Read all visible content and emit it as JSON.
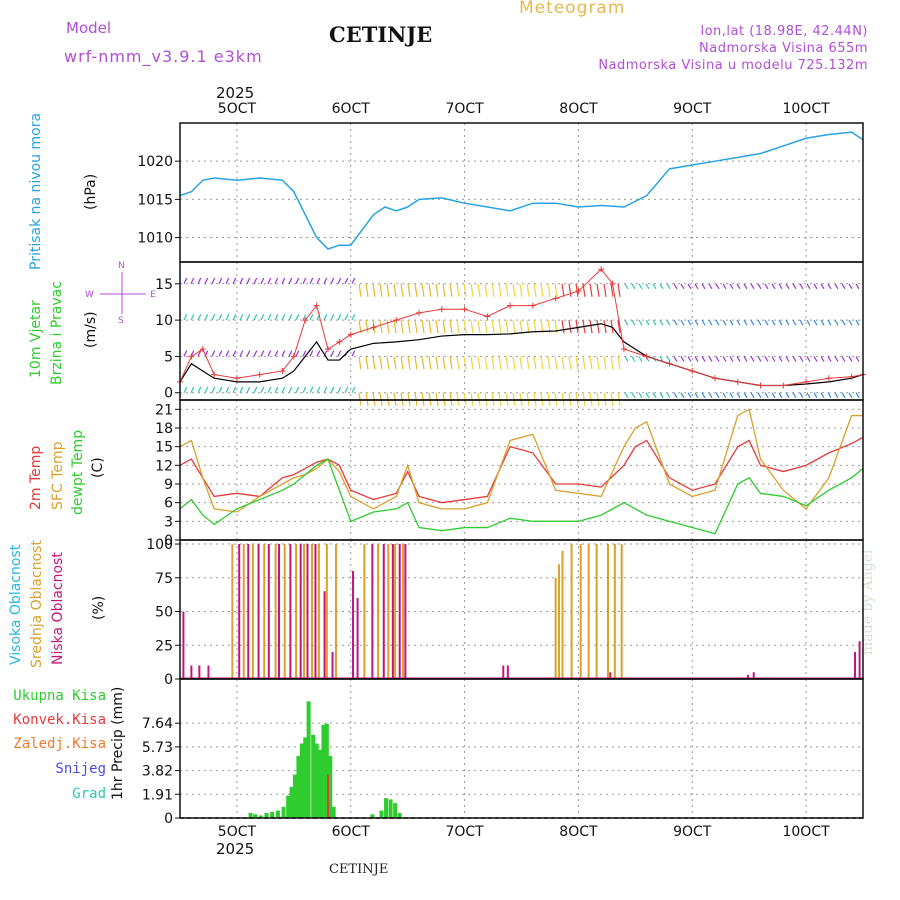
{
  "header": {
    "model_label": "Model",
    "model_name": "wrf-nmm_v3.9.1 e3km",
    "station": "CETINJE",
    "product": "Meteogram",
    "lonlat": "lon,lat (18.98E, 42.44N)",
    "elevation": "Nadmorska Visina 655m",
    "model_elevation": "Nadmorska Visina u modelu 725.132m",
    "year_top": "2025",
    "year_bottom": "2025",
    "footer_station": "CETINJE",
    "watermark": "made by Angel"
  },
  "colors": {
    "pressure": "#27a3e3",
    "wind_speed": "#000000",
    "gust": "#e8383a",
    "temp": "#e8383a",
    "sfc_temp": "#d9a02a",
    "dewpt": "#2ecc2e",
    "high_cloud": "#27b7e3",
    "mid_cloud": "#d9a02a",
    "low_cloud": "#c0157a",
    "precip": "#2ecc2e",
    "conv": "#e8383a",
    "header_purple": "#b04fd6",
    "meteogram": "#e8b74f"
  },
  "chart_data": [
    {
      "type": "line",
      "title": "Pritisak na nivou mora",
      "ylabel": "(hPa)",
      "date_ticks": [
        "5OCT",
        "6OCT",
        "7OCT",
        "8OCT",
        "9OCT",
        "10OCT"
      ],
      "date_tick_positions": [
        5,
        6,
        7,
        8,
        9,
        10
      ],
      "xlim": [
        4.5,
        10.5
      ],
      "ylim": [
        1006.8,
        1025
      ],
      "yticks": [
        "1010",
        "1015",
        "1020"
      ],
      "ytick_values": [
        1010,
        1015,
        1020
      ],
      "series": [
        {
          "name": "Pritisak",
          "x": [
            4.5,
            4.6,
            4.7,
            4.8,
            5.0,
            5.2,
            5.4,
            5.5,
            5.6,
            5.7,
            5.8,
            5.9,
            6.0,
            6.1,
            6.2,
            6.3,
            6.4,
            6.5,
            6.6,
            6.8,
            7.0,
            7.2,
            7.4,
            7.6,
            7.8,
            8.0,
            8.2,
            8.4,
            8.6,
            8.8,
            9.0,
            9.2,
            9.4,
            9.6,
            9.8,
            10.0,
            10.2,
            10.4,
            10.5
          ],
          "values": [
            1015.5,
            1016,
            1017.5,
            1017.8,
            1017.5,
            1017.8,
            1017.5,
            1016,
            1013,
            1010,
            1008.5,
            1009,
            1009,
            1011,
            1013,
            1014,
            1013.5,
            1014,
            1015,
            1015.2,
            1014.5,
            1014,
            1013.5,
            1014.5,
            1014.5,
            1014,
            1014.2,
            1014,
            1015.5,
            1019,
            1019.5,
            1020,
            1020.5,
            1021,
            1022,
            1023,
            1023.5,
            1023.8,
            1022.8
          ]
        }
      ]
    },
    {
      "type": "line",
      "title": "10m Vjetar Brzina i Pravac",
      "ylabel": "(m/s)",
      "xlim": [
        4.5,
        10.5
      ],
      "ylim": [
        -1,
        18
      ],
      "yticks": [
        "0",
        "5",
        "10",
        "15"
      ],
      "ytick_values": [
        0,
        5,
        10,
        15
      ],
      "compass": {
        "n": "N",
        "s": "S",
        "e": "E",
        "w": "W"
      },
      "barb_rows": [
        15,
        10,
        5,
        0
      ],
      "series": [
        {
          "name": "Brzina",
          "x": [
            4.5,
            4.6,
            4.7,
            4.8,
            5.0,
            5.2,
            5.4,
            5.5,
            5.6,
            5.7,
            5.8,
            5.9,
            6.0,
            6.2,
            6.4,
            6.6,
            6.8,
            7.0,
            7.2,
            7.4,
            7.6,
            7.8,
            8.0,
            8.2,
            8.3,
            8.4,
            8.6,
            8.8,
            9.0,
            9.2,
            9.4,
            9.6,
            9.8,
            10.0,
            10.2,
            10.4,
            10.5
          ],
          "values": [
            1.5,
            4,
            3,
            2,
            1.5,
            1.5,
            2,
            3,
            5,
            7,
            4.5,
            4.5,
            6,
            6.8,
            7,
            7.3,
            7.8,
            8,
            8,
            8.1,
            8.4,
            8.5,
            9,
            9.5,
            9,
            7,
            5,
            4,
            3,
            2,
            1.5,
            1,
            1,
            1.2,
            1.5,
            2,
            2.5
          ]
        },
        {
          "name": "Udari",
          "x": [
            4.5,
            4.6,
            4.7,
            4.8,
            5.0,
            5.2,
            5.4,
            5.5,
            5.6,
            5.7,
            5.8,
            5.9,
            6.0,
            6.2,
            6.4,
            6.6,
            6.8,
            7.0,
            7.2,
            7.4,
            7.6,
            7.8,
            8.0,
            8.2,
            8.3,
            8.4,
            8.6,
            8.8,
            9.0,
            9.2,
            9.4,
            9.6,
            9.8,
            10.0,
            10.2,
            10.4,
            10.5
          ],
          "values": [
            1.5,
            5,
            6,
            2.5,
            2,
            2.5,
            3,
            5,
            10,
            12,
            6,
            7,
            8,
            9,
            10,
            11,
            11.5,
            11.5,
            10.5,
            12,
            12,
            13,
            14,
            17,
            15,
            6,
            5,
            4,
            3,
            2,
            1.5,
            1,
            1,
            1.5,
            2,
            2.2,
            2.5
          ]
        }
      ]
    },
    {
      "type": "line",
      "title": "2m Temp / SFC Temp / dewpt Temp",
      "ylabel": "(C)",
      "xlim": [
        4.5,
        10.5
      ],
      "ylim": [
        0,
        22.5
      ],
      "yticks": [
        "0",
        "3",
        "6",
        "9",
        "12",
        "15",
        "18",
        "21"
      ],
      "ytick_values": [
        0,
        3,
        6,
        9,
        12,
        15,
        18,
        21
      ],
      "series": [
        {
          "name": "2m Temp",
          "x": [
            4.5,
            4.6,
            4.7,
            4.8,
            5.0,
            5.2,
            5.4,
            5.5,
            5.6,
            5.7,
            5.8,
            5.9,
            6.0,
            6.2,
            6.4,
            6.5,
            6.6,
            6.8,
            7.0,
            7.2,
            7.4,
            7.6,
            7.8,
            8.0,
            8.2,
            8.4,
            8.5,
            8.6,
            8.8,
            9.0,
            9.2,
            9.4,
            9.5,
            9.6,
            9.8,
            10.0,
            10.2,
            10.4,
            10.5
          ],
          "values": [
            12,
            13,
            10,
            7,
            7.5,
            7,
            10,
            10.5,
            11.5,
            12.5,
            13,
            12,
            8,
            6.5,
            7.5,
            11,
            7,
            6,
            6.5,
            7,
            15,
            14,
            9,
            9,
            8.5,
            12,
            15,
            16,
            10,
            8,
            9,
            15,
            16,
            12,
            11,
            12,
            14,
            15.5,
            16.5
          ]
        },
        {
          "name": "SFC Temp",
          "x": [
            4.5,
            4.6,
            4.7,
            4.8,
            5.0,
            5.2,
            5.4,
            5.5,
            5.6,
            5.7,
            5.8,
            5.9,
            6.0,
            6.2,
            6.4,
            6.5,
            6.6,
            6.8,
            7.0,
            7.2,
            7.4,
            7.6,
            7.8,
            8.0,
            8.2,
            8.4,
            8.5,
            8.6,
            8.8,
            9.0,
            9.2,
            9.4,
            9.5,
            9.6,
            9.8,
            10.0,
            10.2,
            10.4,
            10.5
          ],
          "values": [
            15,
            16,
            10,
            5,
            4.5,
            7,
            9,
            10,
            10.5,
            11.5,
            13,
            11,
            7,
            5,
            7,
            12,
            6,
            5,
            5,
            6,
            16,
            17,
            8,
            7.5,
            7,
            15,
            18,
            19,
            9,
            7,
            8,
            20,
            21,
            13,
            8,
            5,
            10,
            20,
            20
          ]
        },
        {
          "name": "dewpt Temp",
          "x": [
            4.5,
            4.6,
            4.7,
            4.8,
            5.0,
            5.2,
            5.4,
            5.5,
            5.6,
            5.7,
            5.8,
            5.9,
            6.0,
            6.2,
            6.4,
            6.5,
            6.6,
            6.8,
            7.0,
            7.2,
            7.4,
            7.6,
            7.8,
            8.0,
            8.2,
            8.4,
            8.5,
            8.6,
            8.8,
            9.0,
            9.2,
            9.4,
            9.5,
            9.6,
            9.8,
            10.0,
            10.2,
            10.4,
            10.5
          ],
          "values": [
            5,
            6.5,
            4,
            2.5,
            5,
            6.5,
            8,
            9,
            10.5,
            12,
            13,
            8,
            3,
            4.5,
            5,
            6,
            2,
            1.5,
            2,
            2,
            3.5,
            3,
            3,
            3,
            4,
            6,
            5,
            4,
            3,
            2,
            1,
            9,
            10,
            7.5,
            7,
            5.5,
            8,
            10,
            11.5
          ]
        }
      ]
    },
    {
      "type": "bar",
      "title": "Visoka / Srednja / Niska Oblacnost",
      "ylabel": "(%)",
      "xlim": [
        4.5,
        10.5
      ],
      "ylim": [
        0,
        103
      ],
      "yticks": [
        "0",
        "25",
        "50",
        "75",
        "100"
      ],
      "ytick_values": [
        0,
        25,
        50,
        75,
        100
      ],
      "series": [
        {
          "name": "Srednja Oblacnost",
          "x": [
            4.96,
            5.06,
            5.14,
            5.24,
            5.34,
            5.42,
            5.52,
            5.59,
            5.66,
            5.72,
            5.79,
            5.87,
            6.12,
            6.24,
            6.33,
            6.39,
            6.46,
            7.8,
            7.83,
            7.86,
            7.94,
            8.02,
            8.09,
            8.16,
            8.26,
            8.32,
            8.38
          ],
          "values": [
            100,
            100,
            100,
            100,
            100,
            100,
            100,
            100,
            100,
            100,
            100,
            100,
            100,
            100,
            100,
            100,
            100,
            75,
            85,
            95,
            100,
            100,
            100,
            100,
            100,
            100,
            100
          ]
        },
        {
          "name": "Niska Oblacnost",
          "x": [
            4.53,
            4.6,
            4.67,
            4.75,
            5.02,
            5.1,
            5.19,
            5.28,
            5.37,
            5.47,
            5.56,
            5.62,
            5.69,
            5.77,
            5.84,
            6.02,
            6.06,
            6.19,
            6.29,
            6.37,
            6.43,
            6.48,
            7.34,
            7.38,
            8.28,
            9.49,
            9.54,
            10.43,
            10.47
          ],
          "values": [
            50,
            10,
            10,
            10,
            100,
            100,
            100,
            100,
            100,
            100,
            100,
            100,
            100,
            65,
            20,
            80,
            60,
            100,
            100,
            100,
            100,
            100,
            10,
            10,
            5,
            3,
            5,
            20,
            28
          ]
        }
      ]
    },
    {
      "type": "bar",
      "title": "1hr Precip",
      "ylabel": "1hr Precip (mm)",
      "xlim": [
        4.5,
        10.5
      ],
      "ylim": [
        0,
        11.2
      ],
      "yticks": [
        "0",
        "1.91",
        "3.82",
        "5.73",
        "7.64"
      ],
      "ytick_values": [
        0,
        1.91,
        3.82,
        5.73,
        7.64
      ],
      "legend": [
        "Ukupna Kisa",
        "Konvek.Kisa",
        "Zaledj.Kisa",
        "Snijeg",
        "Grad"
      ],
      "series": [
        {
          "name": "Ukupna Kisa",
          "x": [
            5.12,
            5.16,
            5.21,
            5.26,
            5.31,
            5.36,
            5.41,
            5.45,
            5.48,
            5.51,
            5.54,
            5.57,
            5.6,
            5.63,
            5.67,
            5.7,
            5.73,
            5.76,
            5.79,
            5.82,
            5.85,
            6.19,
            6.27,
            6.31,
            6.35,
            6.39,
            6.43
          ],
          "values": [
            0.4,
            0.3,
            0.2,
            0.4,
            0.5,
            0.6,
            0.9,
            1.8,
            2.5,
            3.5,
            5,
            6,
            6.5,
            9.4,
            6.7,
            6,
            5.5,
            7.5,
            7.6,
            5,
            0.9,
            0.3,
            0.6,
            1.6,
            1.5,
            1.2,
            0.4
          ]
        },
        {
          "name": "Konvek.Kisa",
          "x": [
            5.8
          ],
          "values": [
            3.5
          ]
        }
      ]
    }
  ],
  "panel_titles": {
    "pressure": "Pritisak na nivou mora",
    "wind_1": "10m Vjetar",
    "wind_2": "Brzina i Pravac",
    "temp_1": "2m Temp",
    "temp_2": "SFC Temp",
    "temp_3": "dewpt Temp",
    "cloud_1": "Visoka Oblacnost",
    "cloud_2": "Srednja Oblacnost",
    "cloud_3": "Niska Oblacnost"
  }
}
